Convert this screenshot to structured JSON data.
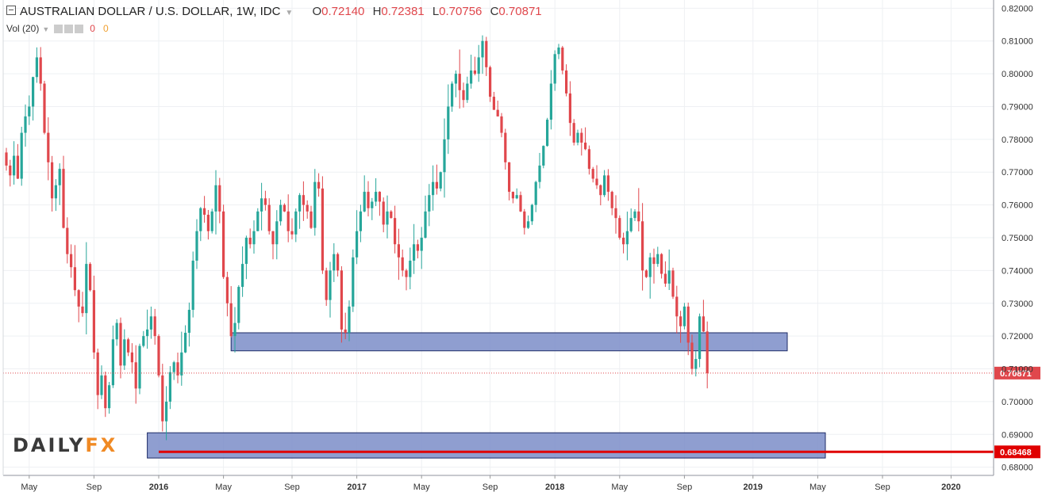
{
  "legend": {
    "title": "AUSTRALIAN DOLLAR / U.S. DOLLAR, 1W, IDC",
    "o_label": "O",
    "o": "0.72140",
    "h_label": "H",
    "h": "0.72381",
    "l_label": "L",
    "l": "0.70756",
    "c_label": "C",
    "c": "0.70871"
  },
  "volume": {
    "label": "Vol (20)",
    "v1": "0",
    "v2": "0"
  },
  "logo": {
    "part1": "DAILY",
    "part2": "FX"
  },
  "colors": {
    "up": "#26a69a",
    "down": "#e0474c",
    "zone": "#7b8dc8",
    "line": "#e00000"
  },
  "chart_data": {
    "type": "candlestick",
    "y_axis": {
      "range": [
        0.6775,
        0.8225
      ],
      "ticks": [
        "0.68000",
        "0.69000",
        "0.70000",
        "0.71000",
        "0.72000",
        "0.73000",
        "0.74000",
        "0.75000",
        "0.76000",
        "0.77000",
        "0.78000",
        "0.79000",
        "0.80000",
        "0.81000",
        "0.82000"
      ],
      "last_price_label": "0.70871",
      "support_label": "0.68468"
    },
    "x_axis": {
      "ticks": [
        {
          "label": "May",
          "week": 6
        },
        {
          "label": "Sep",
          "week": 23
        },
        {
          "label": "2016",
          "week": 40
        },
        {
          "label": "May",
          "week": 57
        },
        {
          "label": "Sep",
          "week": 75
        },
        {
          "label": "2017",
          "week": 92
        },
        {
          "label": "May",
          "week": 109
        },
        {
          "label": "Sep",
          "week": 127
        },
        {
          "label": "2018",
          "week": 144
        },
        {
          "label": "May",
          "week": 161
        },
        {
          "label": "Sep",
          "week": 178
        },
        {
          "label": "2019",
          "week": 196
        },
        {
          "label": "May",
          "week": 213
        },
        {
          "label": "Sep",
          "week": 230
        },
        {
          "label": "2020",
          "week": 248
        }
      ]
    },
    "zones": [
      {
        "from_week": 59,
        "to_week": 205,
        "low": 0.7155,
        "high": 0.721
      },
      {
        "from_week": 37,
        "to_week": 215,
        "low": 0.6828,
        "high": 0.6905
      }
    ],
    "support_line": {
      "from_week": 40,
      "value": 0.68468
    },
    "last_price": 0.70871,
    "closes": [
      0.772,
      0.769,
      0.775,
      0.768,
      0.782,
      0.787,
      0.79,
      0.799,
      0.805,
      0.797,
      0.782,
      0.773,
      0.762,
      0.766,
      0.771,
      0.753,
      0.745,
      0.741,
      0.734,
      0.729,
      0.727,
      0.742,
      0.734,
      0.715,
      0.702,
      0.708,
      0.698,
      0.705,
      0.719,
      0.724,
      0.711,
      0.719,
      0.715,
      0.712,
      0.704,
      0.717,
      0.72,
      0.722,
      0.726,
      0.72,
      0.708,
      0.694,
      0.7,
      0.709,
      0.712,
      0.708,
      0.715,
      0.721,
      0.728,
      0.743,
      0.752,
      0.759,
      0.757,
      0.752,
      0.758,
      0.766,
      0.758,
      0.738,
      0.73,
      0.72,
      0.724,
      0.735,
      0.742,
      0.75,
      0.748,
      0.752,
      0.758,
      0.762,
      0.76,
      0.752,
      0.748,
      0.755,
      0.76,
      0.758,
      0.752,
      0.751,
      0.758,
      0.763,
      0.76,
      0.758,
      0.753,
      0.767,
      0.765,
      0.74,
      0.731,
      0.74,
      0.745,
      0.74,
      0.722,
      0.721,
      0.729,
      0.744,
      0.752,
      0.758,
      0.764,
      0.759,
      0.761,
      0.764,
      0.761,
      0.754,
      0.758,
      0.756,
      0.748,
      0.744,
      0.74,
      0.738,
      0.743,
      0.748,
      0.746,
      0.75,
      0.758,
      0.763,
      0.767,
      0.765,
      0.77,
      0.78,
      0.79,
      0.797,
      0.8,
      0.795,
      0.792,
      0.797,
      0.801,
      0.8,
      0.805,
      0.81,
      0.802,
      0.793,
      0.789,
      0.787,
      0.782,
      0.773,
      0.764,
      0.762,
      0.763,
      0.758,
      0.753,
      0.755,
      0.76,
      0.767,
      0.772,
      0.778,
      0.786,
      0.797,
      0.806,
      0.808,
      0.801,
      0.794,
      0.785,
      0.779,
      0.782,
      0.779,
      0.777,
      0.771,
      0.768,
      0.766,
      0.763,
      0.769,
      0.764,
      0.759,
      0.756,
      0.75,
      0.748,
      0.752,
      0.756,
      0.758,
      0.755,
      0.74,
      0.738,
      0.744,
      0.742,
      0.745,
      0.739,
      0.736,
      0.74,
      0.732,
      0.726,
      0.723,
      0.729,
      0.718,
      0.71,
      0.713,
      0.726,
      0.7214,
      0.70871
    ]
  }
}
